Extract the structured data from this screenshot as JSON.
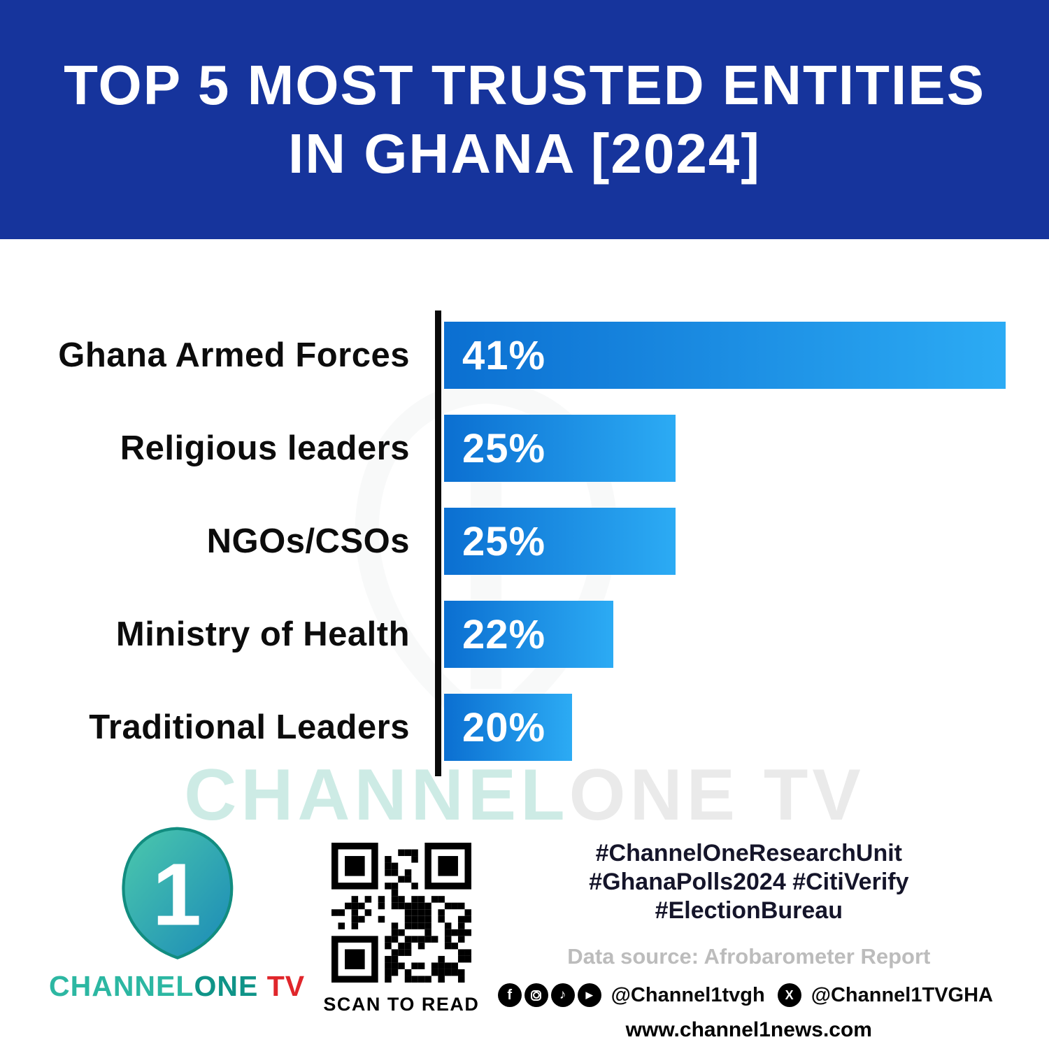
{
  "header": {
    "title_line1": "TOP 5 MOST TRUSTED ENTITIES",
    "title_line2": "IN GHANA [2024]"
  },
  "chart_data": {
    "type": "bar",
    "orientation": "horizontal",
    "title": "Top 5 Most Trusted Entities in Ghana [2024]",
    "categories": [
      "Ghana Armed Forces",
      "Religious leaders",
      "NGOs/CSOs",
      "Ministry of Health",
      "Traditional Leaders"
    ],
    "values": [
      41,
      25,
      25,
      22,
      20
    ],
    "value_labels": [
      "41%",
      "25%",
      "25%",
      "22%",
      "20%"
    ],
    "unit": "%",
    "xlim": [
      0,
      41
    ],
    "grid": false,
    "legend": false,
    "display_widths_pct_of_max": [
      100,
      41.2,
      41.2,
      30.1,
      22.8
    ],
    "bar_gradient": [
      "#0b6fd1",
      "#2cabf4"
    ],
    "axis_color": "#0a0a0a"
  },
  "watermark": {
    "text_primary": "CHANNEL",
    "text_secondary": "ONE TV"
  },
  "footer": {
    "logo": {
      "digit": "1",
      "brand_part1": "CHANNEL",
      "brand_part2": "ONE",
      "brand_part3": " TV"
    },
    "qr": {
      "caption": "SCAN TO READ"
    },
    "hashtags": [
      "#ChannelOneResearchUnit",
      "#GhanaPolls2024 #CitiVerify",
      "#ElectionBureau"
    ],
    "data_source": "Data source: Afrobarometer Report",
    "social": {
      "facebook_glyph": "f",
      "handle_primary": "@Channel1tvgh",
      "handle_x": "@Channel1TVGHA",
      "icons": [
        "facebook-icon",
        "instagram-icon",
        "tiktok-icon",
        "youtube-icon",
        "x-icon"
      ]
    },
    "website": "www.channel1news.com"
  },
  "colors": {
    "header_bg": "#16349c",
    "bar_start": "#0b6fd1",
    "bar_end": "#2cabf4",
    "brand_teal": "#1fae9b",
    "brand_red": "#e0262b"
  }
}
